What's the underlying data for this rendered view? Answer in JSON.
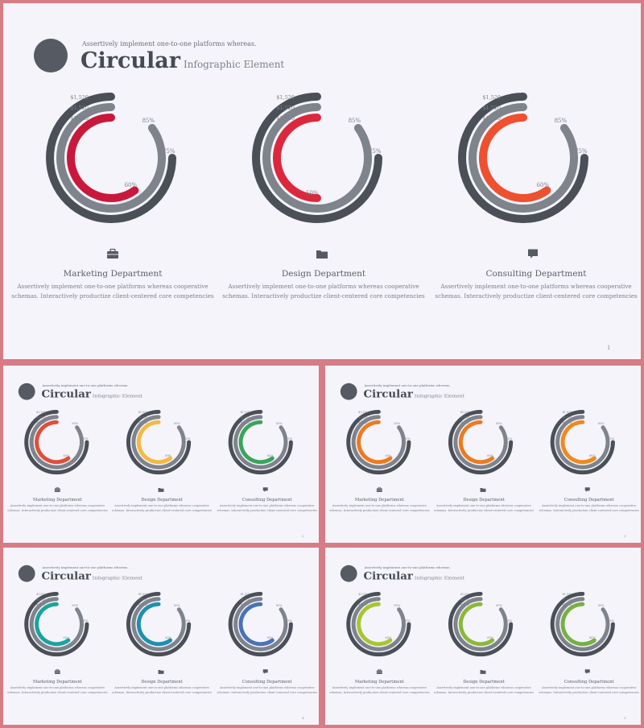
{
  "slides": [
    {
      "subtitle": "Assertively implement one-to-one platforms whereas.",
      "title_main": "Circular",
      "title_rest": "Infographic Element",
      "page_number": "1",
      "departments": [
        {
          "name": "Marketing Department",
          "icon": "briefcase-icon",
          "description_line1": "Assertively implement one-to-one platforms whereas cooperative",
          "description_line2": "schemas. Interactively productize client-centered core competencies",
          "accent": "#c8193c",
          "outer_label": "75%",
          "middle_label": "85%",
          "inner_label": "60%",
          "value_labels": [
            "$1,520",
            "$1,520",
            "$1,520"
          ]
        },
        {
          "name": "Design Department",
          "icon": "folder-icon",
          "description_line1": "Assertively implement one-to-one platforms whereas cooperative",
          "description_line2": "schemas. Interactively productize client-centered core competencies",
          "accent": "#dc283c",
          "outer_label": "75%",
          "middle_label": "85%",
          "inner_label": "50%",
          "value_labels": [
            "$1,520",
            "$1,520",
            "$1,520"
          ]
        },
        {
          "name": "Consulting Department",
          "icon": "chat-icon",
          "description_line1": "Assertively implement one-to-one platforms whereas cooperative",
          "description_line2": "schemas. Interactively productize client-centered core competencies",
          "accent": "#ee5030",
          "outer_label": "75%",
          "middle_label": "85%",
          "inner_label": "60%",
          "value_labels": [
            "$1,520",
            "$1,520",
            "$1,520"
          ]
        }
      ]
    },
    {
      "subtitle": "Assertively implement one-to-one platforms whereas.",
      "title_main": "Circular",
      "title_rest": "Infographic Element",
      "page_number": "2",
      "departments": [
        {
          "name": "Marketing Department",
          "icon": "briefcase-icon",
          "description_line1": "Assertively implement one-to-one platforms whereas cooperative",
          "description_line2": "schemas. Interactively productize client-centered core competencies",
          "accent": "#e04e3a",
          "outer_label": "75%",
          "middle_label": "85%",
          "inner_label": "60%",
          "value_labels": [
            "$1,520",
            "$1,520",
            "$1,520"
          ]
        },
        {
          "name": "Design Department",
          "icon": "folder-icon",
          "description_line1": "Assertively implement one-to-one platforms whereas cooperative",
          "description_line2": "schemas. Interactively productize client-centered core competencies",
          "accent": "#f4b942",
          "outer_label": "75%",
          "middle_label": "85%",
          "inner_label": "60%",
          "value_labels": [
            "$1,520",
            "$1,520",
            "$1,520"
          ]
        },
        {
          "name": "Consulting Department",
          "icon": "chat-icon",
          "description_line1": "Assertively implement one-to-one platforms whereas cooperative",
          "description_line2": "schemas. Interactively productize client-centered core competencies",
          "accent": "#3aa55a",
          "outer_label": "75%",
          "middle_label": "85%",
          "inner_label": "60%",
          "value_labels": [
            "$1,520",
            "$1,520",
            "$1,520"
          ]
        }
      ]
    },
    {
      "subtitle": "Assertively implement one-to-one platforms whereas.",
      "title_main": "Circular",
      "title_rest": "Infographic Element",
      "page_number": "3",
      "departments": [
        {
          "name": "Marketing Department",
          "icon": "briefcase-icon",
          "description_line1": "Assertively implement one-to-one platforms whereas cooperative",
          "description_line2": "schemas. Interactively productize client-centered core competencies",
          "accent": "#ee7a1f",
          "outer_label": "75%",
          "middle_label": "85%",
          "inner_label": "60%",
          "value_labels": [
            "$1,520",
            "$1,520",
            "$1,520"
          ]
        },
        {
          "name": "Design Department",
          "icon": "folder-icon",
          "description_line1": "Assertively implement one-to-one platforms whereas cooperative",
          "description_line2": "schemas. Interactively productize client-centered core competencies",
          "accent": "#ee7a1f",
          "outer_label": "75%",
          "middle_label": "85%",
          "inner_label": "60%",
          "value_labels": [
            "$1,520",
            "$1,520",
            "$1,520"
          ]
        },
        {
          "name": "Consulting Department",
          "icon": "chat-icon",
          "description_line1": "Assertively implement one-to-one platforms whereas cooperative",
          "description_line2": "schemas. Interactively productize client-centered core competencies",
          "accent": "#ee8a1f",
          "outer_label": "75%",
          "middle_label": "85%",
          "inner_label": "60%",
          "value_labels": [
            "$1,520",
            "$1,520",
            "$1,520"
          ]
        }
      ]
    },
    {
      "subtitle": "Assertively implement one-to-one platforms whereas.",
      "title_main": "Circular",
      "title_rest": "Infographic Element",
      "page_number": "4",
      "departments": [
        {
          "name": "Marketing Department",
          "icon": "briefcase-icon",
          "description_line1": "Assertively implement one-to-one platforms whereas cooperative",
          "description_line2": "schemas. Interactively productize client-centered core competencies",
          "accent": "#1ba39c",
          "outer_label": "75%",
          "middle_label": "85%",
          "inner_label": "60%",
          "value_labels": [
            "$1,520",
            "$1,520",
            "$1,520"
          ]
        },
        {
          "name": "Design Department",
          "icon": "folder-icon",
          "description_line1": "Assertively implement one-to-one platforms whereas cooperative",
          "description_line2": "schemas. Interactively productize client-centered core competencies",
          "accent": "#1f8fad",
          "outer_label": "75%",
          "middle_label": "85%",
          "inner_label": "60%",
          "value_labels": [
            "$1,520",
            "$1,520",
            "$1,520"
          ]
        },
        {
          "name": "Consulting Department",
          "icon": "chat-icon",
          "description_line1": "Assertively implement one-to-one platforms whereas cooperative",
          "description_line2": "schemas. Interactively productize client-centered core competencies",
          "accent": "#4a72b8",
          "outer_label": "75%",
          "middle_label": "85%",
          "inner_label": "60%",
          "value_labels": [
            "$1,520",
            "$1,520",
            "$1,520"
          ]
        }
      ]
    },
    {
      "subtitle": "Assertively implement one-to-one platforms whereas.",
      "title_main": "Circular",
      "title_rest": "Infographic Element",
      "page_number": "5",
      "departments": [
        {
          "name": "Marketing Department",
          "icon": "briefcase-icon",
          "description_line1": "Assertively implement one-to-one platforms whereas cooperative",
          "description_line2": "schemas. Interactively productize client-centered core competencies",
          "accent": "#a9c530",
          "outer_label": "75%",
          "middle_label": "85%",
          "inner_label": "60%",
          "value_labels": [
            "$1,520",
            "$1,520",
            "$1,520"
          ]
        },
        {
          "name": "Design Department",
          "icon": "folder-icon",
          "description_line1": "Assertively implement one-to-one platforms whereas cooperative",
          "description_line2": "schemas. Interactively productize client-centered core competencies",
          "accent": "#8cb83a",
          "outer_label": "75%",
          "middle_label": "85%",
          "inner_label": "60%",
          "value_labels": [
            "$1,520",
            "$1,520",
            "$1,520"
          ]
        },
        {
          "name": "Consulting Department",
          "icon": "chat-icon",
          "description_line1": "Assertively implement one-to-one platforms whereas cooperative",
          "description_line2": "schemas. Interactively productize client-centered core competencies",
          "accent": "#76b043",
          "outer_label": "75%",
          "middle_label": "85%",
          "inner_label": "60%",
          "value_labels": [
            "$1,520",
            "$1,520",
            "$1,520"
          ]
        }
      ]
    }
  ],
  "chart_data": [
    {
      "type": "radial-bar",
      "slide": 1,
      "department": "Marketing Department",
      "series": [
        {
          "label": "75%",
          "value": 75
        },
        {
          "label": "85%",
          "value": 85
        },
        {
          "label": "60%",
          "value": 60
        }
      ]
    },
    {
      "type": "radial-bar",
      "slide": 1,
      "department": "Design Department",
      "series": [
        {
          "label": "75%",
          "value": 75
        },
        {
          "label": "85%",
          "value": 85
        },
        {
          "label": "50%",
          "value": 50
        }
      ]
    },
    {
      "type": "radial-bar",
      "slide": 1,
      "department": "Consulting Department",
      "series": [
        {
          "label": "75%",
          "value": 75
        },
        {
          "label": "85%",
          "value": 85
        },
        {
          "label": "60%",
          "value": 60
        }
      ]
    }
  ],
  "colors": {
    "outer_ring": "#4a4f58",
    "middle_ring": "#7e838c",
    "background": "#f4f4fa",
    "frame": "#d77c84"
  }
}
